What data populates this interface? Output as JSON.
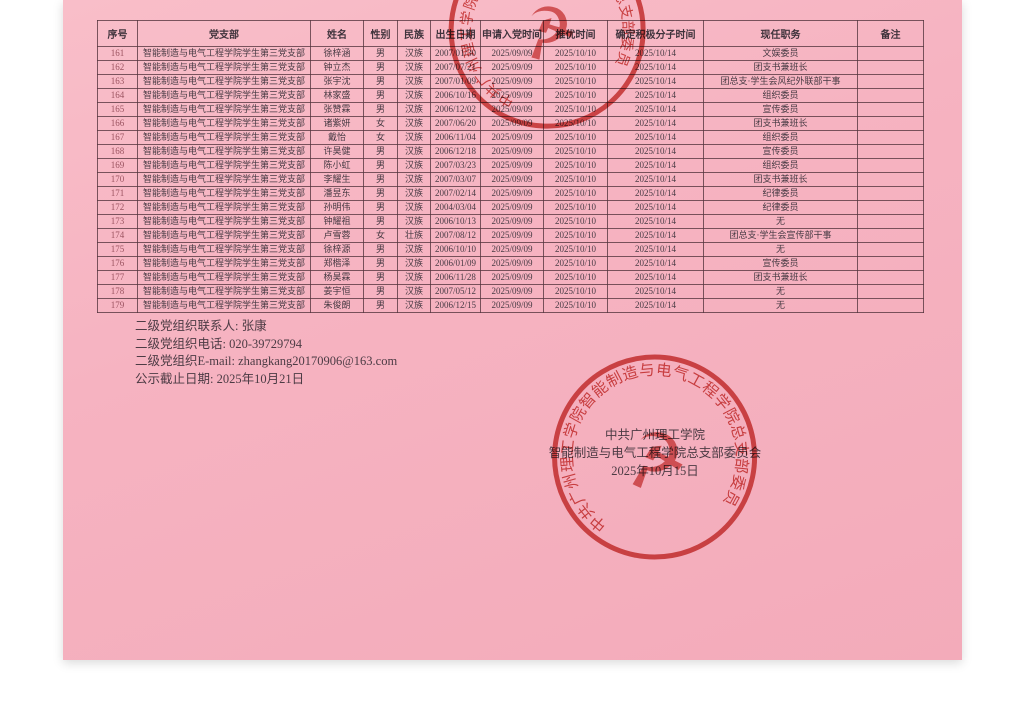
{
  "document": {
    "paper_color": "#f6b4c1",
    "stamp_color": "#c63832"
  },
  "table": {
    "headers": [
      "序号",
      "党支部",
      "姓名",
      "性别",
      "民族",
      "出生日期",
      "申请入党时间",
      "推优时间",
      "确定积极分子时间",
      "现任职务",
      "备注"
    ],
    "rows": [
      [
        "161",
        "智能制造与电气工程学院学生第三党支部",
        "徐梓涵",
        "男",
        "汉族",
        "2007/01/30",
        "2025/09/09",
        "2025/10/10",
        "2025/10/14",
        "文娱委员",
        ""
      ],
      [
        "162",
        "智能制造与电气工程学院学生第三党支部",
        "钟立杰",
        "男",
        "汉族",
        "2007/07/21",
        "2025/09/09",
        "2025/10/10",
        "2025/10/14",
        "团支书兼班长",
        ""
      ],
      [
        "163",
        "智能制造与电气工程学院学生第三党支部",
        "张宇沈",
        "男",
        "汉族",
        "2007/01/09",
        "2025/09/09",
        "2025/10/10",
        "2025/10/14",
        "团总支·学生会风纪外联部干事",
        ""
      ],
      [
        "164",
        "智能制造与电气工程学院学生第三党支部",
        "林家盛",
        "男",
        "汉族",
        "2006/10/16",
        "2025/09/09",
        "2025/10/10",
        "2025/10/14",
        "组织委员",
        ""
      ],
      [
        "165",
        "智能制造与电气工程学院学生第三党支部",
        "张赞霖",
        "男",
        "汉族",
        "2006/12/02",
        "2025/09/09",
        "2025/10/10",
        "2025/10/14",
        "宣传委员",
        ""
      ],
      [
        "166",
        "智能制造与电气工程学院学生第三党支部",
        "诸紫妍",
        "女",
        "汉族",
        "2007/06/20",
        "2025/09/09",
        "2025/10/10",
        "2025/10/14",
        "团支书兼班长",
        ""
      ],
      [
        "167",
        "智能制造与电气工程学院学生第三党支部",
        "戴怡",
        "女",
        "汉族",
        "2006/11/04",
        "2025/09/09",
        "2025/10/10",
        "2025/10/14",
        "组织委员",
        ""
      ],
      [
        "168",
        "智能制造与电气工程学院学生第三党支部",
        "许昊健",
        "男",
        "汉族",
        "2006/12/18",
        "2025/09/09",
        "2025/10/10",
        "2025/10/14",
        "宣传委员",
        ""
      ],
      [
        "169",
        "智能制造与电气工程学院学生第三党支部",
        "陈小虹",
        "男",
        "汉族",
        "2007/03/23",
        "2025/09/09",
        "2025/10/10",
        "2025/10/14",
        "组织委员",
        ""
      ],
      [
        "170",
        "智能制造与电气工程学院学生第三党支部",
        "李耀生",
        "男",
        "汉族",
        "2007/03/07",
        "2025/09/09",
        "2025/10/10",
        "2025/10/14",
        "团支书兼班长",
        ""
      ],
      [
        "171",
        "智能制造与电气工程学院学生第三党支部",
        "潘昱东",
        "男",
        "汉族",
        "2007/02/14",
        "2025/09/09",
        "2025/10/10",
        "2025/10/14",
        "纪律委员",
        ""
      ],
      [
        "172",
        "智能制造与电气工程学院学生第三党支部",
        "孙明伟",
        "男",
        "汉族",
        "2004/03/04",
        "2025/09/09",
        "2025/10/10",
        "2025/10/14",
        "纪律委员",
        ""
      ],
      [
        "173",
        "智能制造与电气工程学院学生第三党支部",
        "钟耀祖",
        "男",
        "汉族",
        "2006/10/13",
        "2025/09/09",
        "2025/10/10",
        "2025/10/14",
        "无",
        ""
      ],
      [
        "174",
        "智能制造与电气工程学院学生第三党支部",
        "卢雪蓉",
        "女",
        "壮族",
        "2007/08/12",
        "2025/09/09",
        "2025/10/10",
        "2025/10/14",
        "团总支·学生会宣传部干事",
        ""
      ],
      [
        "175",
        "智能制造与电气工程学院学生第三党支部",
        "徐梓源",
        "男",
        "汉族",
        "2006/10/10",
        "2025/09/09",
        "2025/10/10",
        "2025/10/14",
        "无",
        ""
      ],
      [
        "176",
        "智能制造与电气工程学院学生第三党支部",
        "郑楷泽",
        "男",
        "汉族",
        "2006/01/09",
        "2025/09/09",
        "2025/10/10",
        "2025/10/14",
        "宣传委员",
        ""
      ],
      [
        "177",
        "智能制造与电气工程学院学生第三党支部",
        "杨昊霖",
        "男",
        "汉族",
        "2006/11/28",
        "2025/09/09",
        "2025/10/10",
        "2025/10/14",
        "团支书兼班长",
        ""
      ],
      [
        "178",
        "智能制造与电气工程学院学生第三党支部",
        "姜宇恒",
        "男",
        "汉族",
        "2007/05/12",
        "2025/09/09",
        "2025/10/10",
        "2025/10/14",
        "无",
        ""
      ],
      [
        "179",
        "智能制造与电气工程学院学生第三党支部",
        "朱俊朗",
        "男",
        "汉族",
        "2006/12/15",
        "2025/09/09",
        "2025/10/10",
        "2025/10/14",
        "无",
        ""
      ]
    ]
  },
  "footer": {
    "lines": [
      "二级党组织联系人: 张康",
      "二级党组织电话: 020-39729794",
      "二级党组织E-mail: zhangkang20170906@163.com",
      "公示截止日期: 2025年10月21日"
    ]
  },
  "signature": {
    "lines": [
      "中共广州理工学院",
      "智能制造与电气工程学院总支部委员会",
      "2025年10月15日"
    ]
  },
  "stamp": {
    "arc_text": "中共广州理工学院智能制造与电气工程学院总支部委员会",
    "emblem": "☭"
  }
}
